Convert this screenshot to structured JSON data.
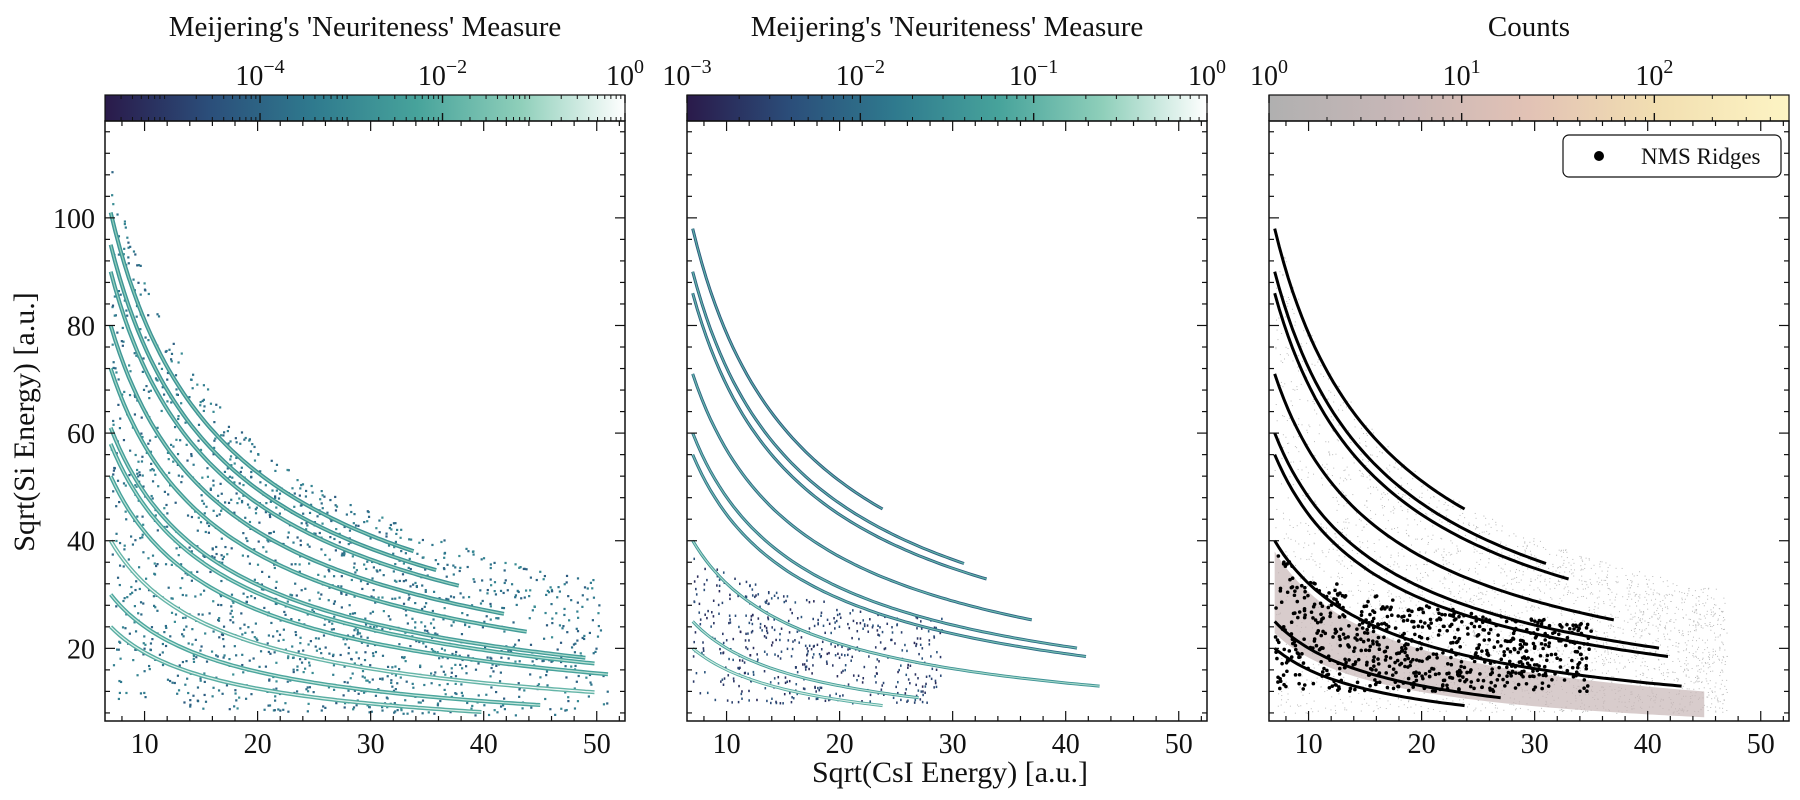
{
  "figure": {
    "xlabel": "Sqrt(CsI Energy) [a.u.]",
    "ylabel": "Sqrt(Si Energy) [a.u.]"
  },
  "colors": {
    "axis": "#111111",
    "nms_ridges": "#000000",
    "counts_background": "#bbbbbb"
  },
  "chart_data": [
    {
      "type": "heatmap",
      "panel": "left",
      "colorbar_title": "Meijering's 'Neuriteness' Measure",
      "colorbar_scale": "log",
      "colorbar_range": [
        2e-06,
        1
      ],
      "colorbar_ticks": [
        {
          "value": 0.0001,
          "base": "10",
          "exp": "−4"
        },
        {
          "value": 0.01,
          "base": "10",
          "exp": "−2"
        },
        {
          "value": 1,
          "base": "10",
          "exp": "0"
        }
      ],
      "colormap": [
        "#2a1a4a",
        "#2b4e7a",
        "#2f7a8e",
        "#47a39b",
        "#8fcfba",
        "#ffffff"
      ],
      "xlim": [
        6.5,
        52.5
      ],
      "ylim": [
        6.5,
        118
      ],
      "xticks": [
        10,
        20,
        30,
        40,
        50
      ],
      "yticks": [
        20,
        40,
        60,
        80,
        100
      ],
      "show_ylabel": true,
      "show_xlabel": false,
      "ridges": [
        {
          "y0": 24,
          "xend": 40,
          "intensity": 0.85
        },
        {
          "y0": 30,
          "xend": 45,
          "intensity": 0.75
        },
        {
          "y0": 40,
          "xend": 50,
          "intensity": 0.95
        },
        {
          "y0": 52,
          "xend": 51,
          "intensity": 0.7
        },
        {
          "y0": 58,
          "xend": 50,
          "intensity": 0.7
        },
        {
          "y0": 61,
          "xend": 49,
          "intensity": 0.65
        },
        {
          "y0": 72,
          "xend": 44,
          "intensity": 0.6
        },
        {
          "y0": 80,
          "xend": 42,
          "intensity": 0.55
        },
        {
          "y0": 90,
          "xend": 38,
          "intensity": 0.55
        },
        {
          "y0": 95,
          "xend": 36,
          "intensity": 0.5
        },
        {
          "y0": 101,
          "xend": 34,
          "intensity": 0.5
        }
      ]
    },
    {
      "type": "heatmap",
      "panel": "middle",
      "colorbar_title": "Meijering's 'Neuriteness' Measure",
      "colorbar_scale": "log",
      "colorbar_range": [
        0.001,
        1
      ],
      "colorbar_ticks": [
        {
          "value": 0.001,
          "base": "10",
          "exp": "−3"
        },
        {
          "value": 0.01,
          "base": "10",
          "exp": "−2"
        },
        {
          "value": 0.1,
          "base": "10",
          "exp": "−1"
        },
        {
          "value": 1,
          "base": "10",
          "exp": "0"
        }
      ],
      "colormap": [
        "#2a1a4a",
        "#2b4e7a",
        "#2f7a8e",
        "#47a39b",
        "#8fcfba",
        "#ffffff"
      ],
      "xlim": [
        6.5,
        52.5
      ],
      "ylim": [
        6.5,
        118
      ],
      "xticks": [
        10,
        20,
        30,
        40,
        50
      ],
      "yticks": [
        20,
        40,
        60,
        80,
        100
      ],
      "show_ylabel": false,
      "show_xlabel": true,
      "ridges": [
        {
          "y0": 20,
          "xend": 24,
          "intensity": 0.8
        },
        {
          "y0": 25,
          "xend": 27,
          "intensity": 0.7
        },
        {
          "y0": 40,
          "xend": 43,
          "intensity": 0.6
        },
        {
          "y0": 56,
          "xend": 42,
          "intensity": 0.3
        },
        {
          "y0": 60,
          "xend": 41,
          "intensity": 0.3
        },
        {
          "y0": 71,
          "xend": 37,
          "intensity": 0.25
        },
        {
          "y0": 86,
          "xend": 33,
          "intensity": 0.2
        },
        {
          "y0": 90,
          "xend": 31,
          "intensity": 0.2
        },
        {
          "y0": 98,
          "xend": 24,
          "intensity": 0.15
        }
      ]
    },
    {
      "type": "heatmap",
      "panel": "right",
      "colorbar_title": "Counts",
      "colorbar_scale": "log",
      "colorbar_range": [
        1,
        500
      ],
      "colorbar_ticks": [
        {
          "value": 1,
          "base": "10",
          "exp": "0"
        },
        {
          "value": 10,
          "base": "10",
          "exp": "1"
        },
        {
          "value": 100,
          "base": "10",
          "exp": "2"
        }
      ],
      "colormap": [
        "#b0b0b0",
        "#c8b7b7",
        "#e2c2b5",
        "#f2dfb1",
        "#fdf4c4"
      ],
      "xlim": [
        6.5,
        52.5
      ],
      "ylim": [
        6.5,
        118
      ],
      "xticks": [
        10,
        20,
        30,
        40,
        50
      ],
      "yticks": [
        20,
        40,
        60,
        80,
        100
      ],
      "show_ylabel": false,
      "show_xlabel": false,
      "legend": {
        "label": "NMS Ridges",
        "position": "top-right",
        "marker": "dot"
      },
      "ridges": [
        {
          "y0": 20,
          "xend": 24,
          "intensity": 1.0
        },
        {
          "y0": 25,
          "xend": 27,
          "intensity": 1.0
        },
        {
          "y0": 40,
          "xend": 43,
          "intensity": 1.0
        },
        {
          "y0": 56,
          "xend": 42,
          "intensity": 1.0
        },
        {
          "y0": 60,
          "xend": 41,
          "intensity": 1.0
        },
        {
          "y0": 71,
          "xend": 37,
          "intensity": 1.0
        },
        {
          "y0": 86,
          "xend": 33,
          "intensity": 1.0
        },
        {
          "y0": 90,
          "xend": 31,
          "intensity": 1.0
        },
        {
          "y0": 98,
          "xend": 24,
          "intensity": 1.0
        }
      ]
    }
  ]
}
